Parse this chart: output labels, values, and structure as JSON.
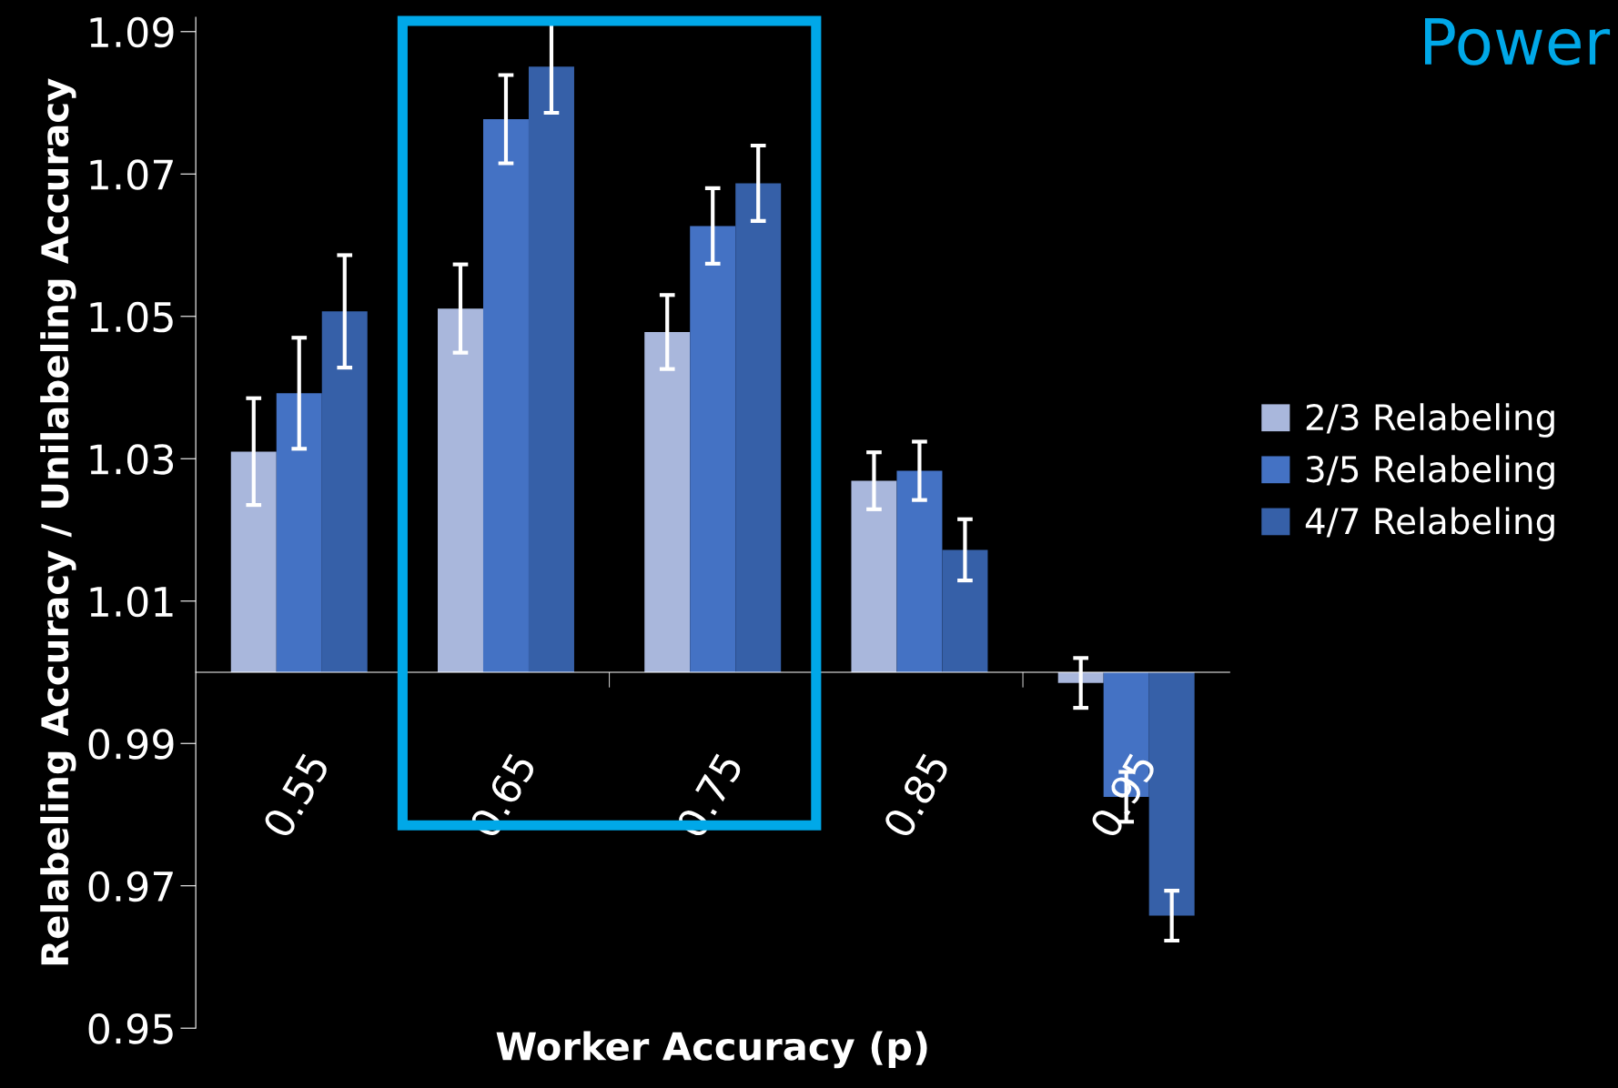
{
  "chart_data": {
    "type": "bar",
    "xlabel": "Worker Accuracy (p)",
    "ylabel": "Relabeling Accuracy / Unilabeling Accuracy",
    "categories": [
      "0.55",
      "0.65",
      "0.75",
      "0.85",
      "0.95"
    ],
    "series": [
      {
        "name": "2/3 Relabeling",
        "color": "#a9b7dc",
        "base": [
          1,
          1,
          1,
          1,
          1
        ],
        "values": [
          0.031,
          0.0511,
          0.0478,
          0.0269,
          -0.0015
        ],
        "errors": [
          0.0075,
          0.0062,
          0.0052,
          0.004,
          0.0035
        ]
      },
      {
        "name": "3/5 Relabeling",
        "color": "#4472c4",
        "base": [
          1,
          1,
          1,
          1,
          1
        ],
        "values": [
          0.0392,
          0.0777,
          0.0627,
          0.0283,
          -0.0175
        ],
        "errors": [
          0.0078,
          0.0062,
          0.0053,
          0.0041,
          0.0035
        ]
      },
      {
        "name": "4/7 Relabeling",
        "color": "#3660a8",
        "base": [
          1,
          1,
          1,
          1,
          1
        ],
        "values": [
          0.0507,
          0.0851,
          0.0687,
          0.0172,
          -0.0342
        ],
        "errors": [
          0.0079,
          0.0065,
          0.0053,
          0.0043,
          0.0035
        ]
      }
    ],
    "ylim": [
      0.95,
      1.092
    ],
    "yticks": [
      {
        "value": 0.95,
        "label": "0.95"
      },
      {
        "value": 0.97,
        "label": "0.97"
      },
      {
        "value": 0.99,
        "label": "0.99"
      },
      {
        "value": 1.01,
        "label": "1.01"
      },
      {
        "value": 1.03,
        "label": "1.03"
      },
      {
        "value": 1.05,
        "label": "1.05"
      },
      {
        "value": 1.07,
        "label": "1.07"
      },
      {
        "value": 1.09,
        "label": "1.09"
      }
    ],
    "annotations": [
      "Power"
    ],
    "legend": "right",
    "grid": false
  }
}
